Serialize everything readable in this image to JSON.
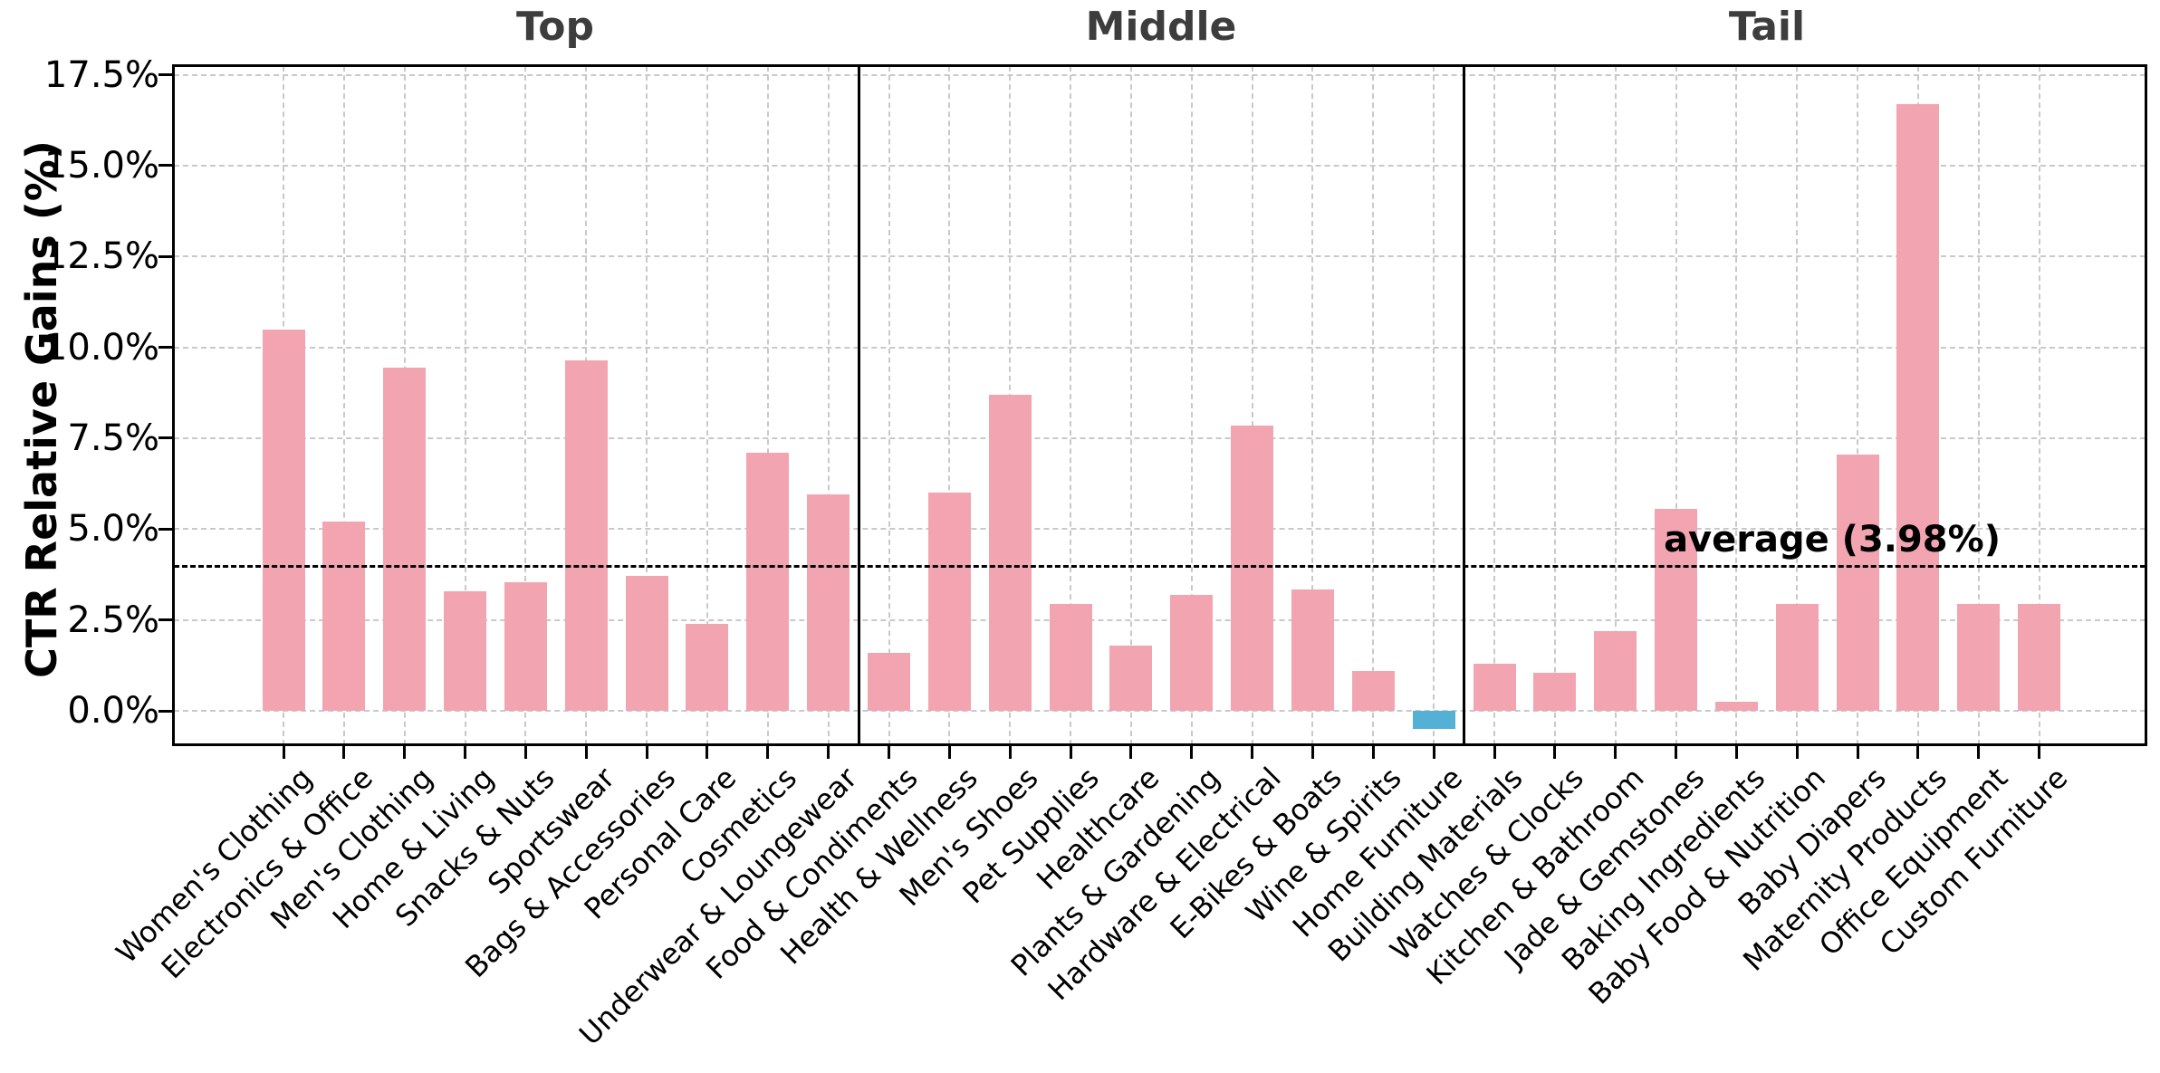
{
  "chart_data": {
    "type": "bar",
    "ylabel": "CTR Relative Gains (%)",
    "ytick_labels": [
      "0.0%",
      "2.5%",
      "5.0%",
      "7.5%",
      "10.0%",
      "12.5%",
      "15.0%",
      "17.5%"
    ],
    "ytick_values": [
      0,
      2.5,
      5,
      7.5,
      10,
      12.5,
      15,
      17.5
    ],
    "ylim": [
      -0.95,
      17.75
    ],
    "grid": "on",
    "legend": "none",
    "bar_color": "#F2A5B1",
    "negative_bar_color": "#55B0D6",
    "title_color": "#3d3d3d",
    "average_line": {
      "value": 3.98,
      "label": "average (3.98%)",
      "style": "dashed-black"
    },
    "panels": [
      {
        "title": "Top",
        "categories": [
          "Women's Clothing",
          "Electronics & Office",
          "Men's Clothing",
          "Home & Living",
          "Snacks & Nuts",
          "Sportswear",
          "Bags & Accessories",
          "Personal Care",
          "Cosmetics",
          "Underwear & Loungewear"
        ],
        "values": [
          10.5,
          5.2,
          9.45,
          3.3,
          3.55,
          9.65,
          3.7,
          2.4,
          7.1,
          5.95
        ]
      },
      {
        "title": "Middle",
        "categories": [
          "Food & Condiments",
          "Health & Wellness",
          "Men's Shoes",
          "Pet Supplies",
          "Healthcare",
          "Plants & Gardening",
          "Hardware & Electrical",
          "E-Bikes & Boats",
          "Wine & Spirits",
          "Home Furniture"
        ],
        "values": [
          1.6,
          6.0,
          8.7,
          2.95,
          1.8,
          3.2,
          7.85,
          3.35,
          1.1,
          -0.5
        ]
      },
      {
        "title": "Tail",
        "categories": [
          "Building Materials",
          "Watches & Clocks",
          "Kitchen & Bathroom",
          "Jade & Gemstones",
          "Baking Ingredients",
          "Baby Food & Nutrition",
          "Baby Diapers",
          "Maternity Products",
          "Office Equipment",
          "Custom Furniture"
        ],
        "values": [
          1.3,
          1.05,
          2.2,
          5.55,
          0.25,
          2.95,
          7.05,
          16.7,
          2.95,
          2.95
        ]
      }
    ]
  }
}
